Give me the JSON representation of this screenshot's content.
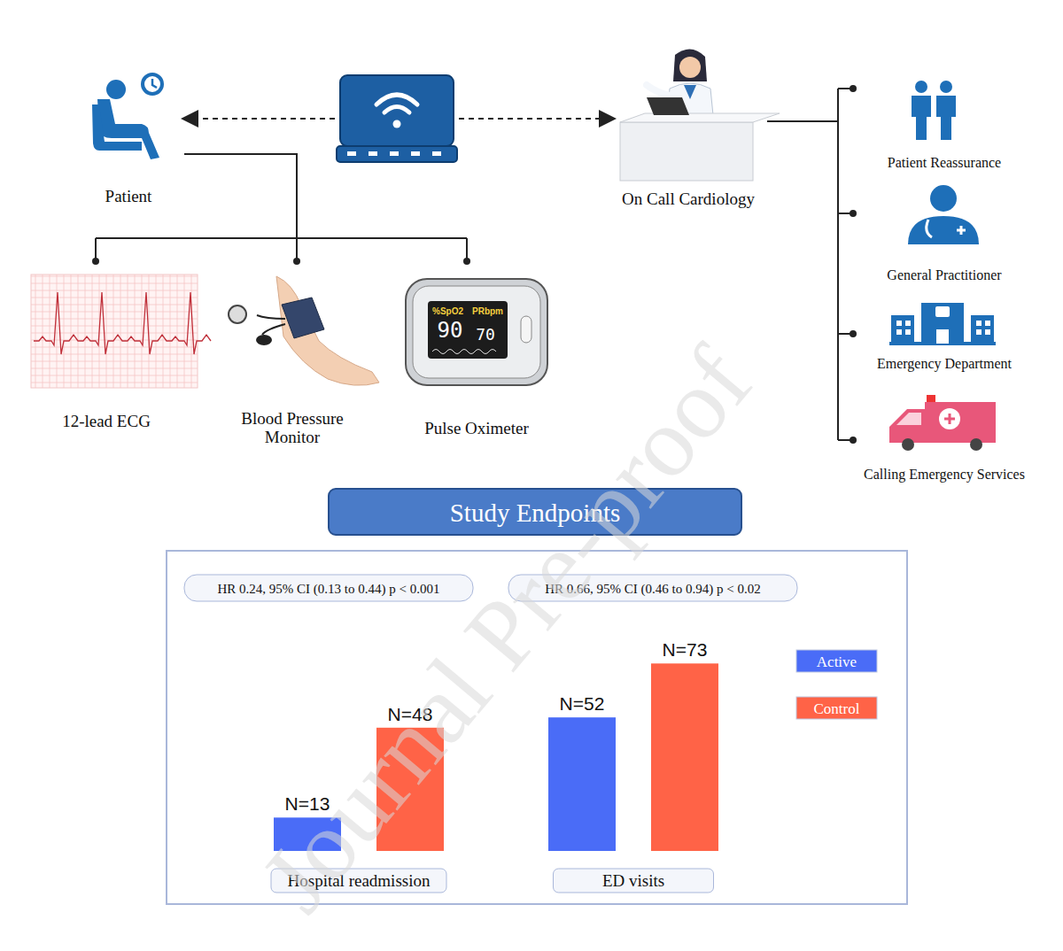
{
  "diagram": {
    "watermark": "Journal Pre-proof",
    "patient": {
      "label": "Patient"
    },
    "clinician": {
      "label": "On Call Cardiology"
    },
    "devices": [
      {
        "label": "12-lead ECG"
      },
      {
        "label": "Blood Pressure Monitor"
      },
      {
        "label": "Pulse Oximeter",
        "spo2_label": "%SpO2",
        "pr_label": "PRbpm",
        "spo2": 90,
        "pr": 70
      }
    ],
    "outcomes": [
      {
        "label": "Patient Reassurance"
      },
      {
        "label": "General Practitioner"
      },
      {
        "label": "Emergency Department"
      },
      {
        "label": "Calling Emergency Services"
      }
    ]
  },
  "chart_data": {
    "type": "bar",
    "title": "Study Endpoints",
    "annotations": [
      "HR 0.24, 95% CI (0.13 to 0.44) p < 0.001",
      "HR 0.66, 95% CI (0.46 to 0.94) p < 0.02"
    ],
    "categories": [
      "Hospital readmission",
      "ED visits"
    ],
    "series": [
      {
        "name": "Active",
        "color": "#4a6cf7",
        "values": [
          13,
          52
        ],
        "value_labels": [
          "N=13",
          "N=52"
        ]
      },
      {
        "name": "Control",
        "color": "#ff6347",
        "values": [
          48,
          73
        ],
        "value_labels": [
          "N=48",
          "N=73"
        ]
      }
    ],
    "ylim": [
      0,
      90
    ],
    "data_labels": true,
    "tick_labels": false,
    "legend": "right"
  }
}
